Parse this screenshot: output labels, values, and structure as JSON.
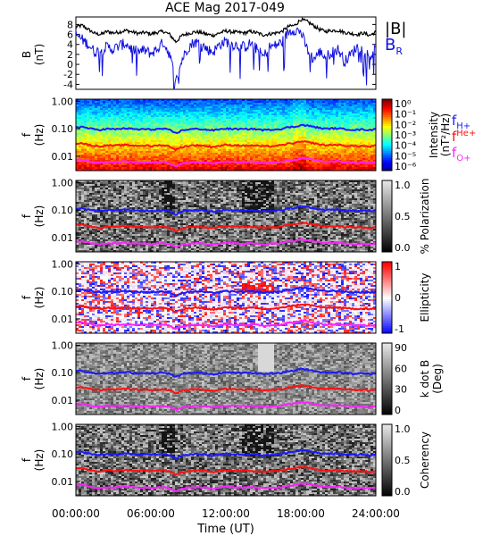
{
  "title": "ACE Mag 2017-049",
  "colors": {
    "b_total": "#000000",
    "b_r": "#1010e0",
    "f_h": "#1a1aff",
    "f_he": "#ff1010",
    "f_o": "#ff22ff"
  },
  "legend": {
    "b_total_label": "|B|",
    "b_r_label": "B",
    "b_r_sub": "R",
    "f_h_label": "f",
    "f_h_sub": "H+",
    "f_he_label": "f",
    "f_he_sub": "He+",
    "f_o_label": "f",
    "f_o_sub": "O+"
  },
  "x_axis": {
    "label": "Time (UT)",
    "ticks": [
      "00:00:00",
      "06:00:00",
      "12:00:00",
      "18:00:00",
      "24:00:00"
    ],
    "range_hours": [
      0,
      24
    ]
  },
  "chart_data": [
    {
      "type": "line",
      "panel": "magnetic-field",
      "ylabel": "B",
      "yunit": "(nT)",
      "ylim": [
        -5,
        9.5
      ],
      "yticks": [
        "-4",
        "-2",
        "0",
        "2",
        "4",
        "6",
        "8"
      ],
      "x_hours": [
        0,
        0.5,
        1,
        1.5,
        2,
        2.5,
        3,
        3.5,
        4,
        4.5,
        5,
        5.5,
        6,
        6.5,
        7,
        7.5,
        8,
        8.5,
        9,
        9.5,
        10,
        10.5,
        11,
        11.5,
        12,
        12.5,
        13,
        13.5,
        14,
        14.5,
        15,
        15.5,
        16,
        16.5,
        17,
        17.5,
        18,
        18.5,
        19,
        19.5,
        20,
        20.5,
        21,
        21.5,
        22,
        22.5,
        23,
        23.5,
        24
      ],
      "series": [
        {
          "name": "|B|",
          "values": [
            7.5,
            7.8,
            7.0,
            6.2,
            6.0,
            6.6,
            6.3,
            6.5,
            6.8,
            6.5,
            6.2,
            6.4,
            6.1,
            6.4,
            6.6,
            6.0,
            4.5,
            5.8,
            6.2,
            6.5,
            6.4,
            6.0,
            5.8,
            6.3,
            6.7,
            6.5,
            6.4,
            6.3,
            6.6,
            6.3,
            5.9,
            6.1,
            6.3,
            6.6,
            7.6,
            7.8,
            9.0,
            8.6,
            7.8,
            7.0,
            6.6,
            6.8,
            6.8,
            6.4,
            6.2,
            6.0,
            6.3,
            5.8,
            6.5
          ]
        },
        {
          "name": "B",
          "values": [
            6.0,
            5.0,
            4.0,
            2.5,
            2.8,
            3.5,
            3.0,
            3.8,
            4.2,
            3.0,
            2.5,
            2.8,
            2.2,
            3.0,
            4.5,
            2.0,
            -3.5,
            1.0,
            3.5,
            4.5,
            4.2,
            3.0,
            2.5,
            4.0,
            4.6,
            4.0,
            3.8,
            3.5,
            4.2,
            3.0,
            1.5,
            3.5,
            3.8,
            4.5,
            6.5,
            7.0,
            6.5,
            3.0,
            1.0,
            2.5,
            1.5,
            2.5,
            3.0,
            0.5,
            2.0,
            3.5,
            3.0,
            1.5,
            3.0
          ]
        }
      ]
    },
    {
      "type": "heatmap",
      "panel": "intensity",
      "ylabel": "f",
      "yunit": "(Hz)",
      "yscale": "log",
      "ylim": [
        0.003,
        1.2
      ],
      "yticks": [
        "0.01",
        "0.10",
        "1.00"
      ],
      "colorbar": {
        "label": "Intensity",
        "unit": "(nT²/Hz)",
        "scale": "log",
        "ticks": [
          "10⁰",
          "10⁻¹",
          "10⁻²",
          "10⁻³",
          "10⁻⁴",
          "10⁻⁵",
          "10⁻⁶"
        ]
      }
    },
    {
      "type": "heatmap",
      "panel": "polarization",
      "ylabel": "f",
      "yunit": "(Hz)",
      "yscale": "log",
      "ylim": [
        0.003,
        1.2
      ],
      "yticks": [
        "0.01",
        "0.10",
        "1.00"
      ],
      "colorbar": {
        "label": "% Polarization",
        "unit": "",
        "scale": "linear",
        "range": [
          0,
          1
        ],
        "ticks": [
          "1.0",
          "0.5",
          "0.0"
        ]
      }
    },
    {
      "type": "heatmap",
      "panel": "ellipticity",
      "ylabel": "f",
      "yunit": "(Hz)",
      "yscale": "log",
      "ylim": [
        0.003,
        1.2
      ],
      "yticks": [
        "0.01",
        "0.10",
        "1.00"
      ],
      "colorbar": {
        "label": "Ellipticity",
        "unit": "",
        "scale": "linear",
        "range": [
          -1,
          1
        ],
        "ticks": [
          "1",
          "0",
          "-1"
        ]
      }
    },
    {
      "type": "heatmap",
      "panel": "wave-normal-angle",
      "ylabel": "f",
      "yunit": "(Hz)",
      "yscale": "log",
      "ylim": [
        0.003,
        1.2
      ],
      "yticks": [
        "0.01",
        "0.10",
        "1.00"
      ],
      "colorbar": {
        "label": "k dot B",
        "unit": "(Deg)",
        "scale": "linear",
        "range": [
          0,
          90
        ],
        "ticks": [
          "90",
          "60",
          "30",
          "0"
        ]
      }
    },
    {
      "type": "heatmap",
      "panel": "coherency",
      "ylabel": "f",
      "yunit": "(Hz)",
      "yscale": "log",
      "ylim": [
        0.003,
        1.2
      ],
      "yticks": [
        "0.01",
        "0.10",
        "1.00"
      ],
      "colorbar": {
        "label": "Coherency",
        "unit": "",
        "scale": "linear",
        "range": [
          0,
          1
        ],
        "ticks": [
          "1.0",
          "0.5",
          "0.0"
        ]
      }
    }
  ],
  "gyrofrequencies": {
    "x_hours": [
      0,
      0.5,
      1,
      1.5,
      2,
      2.5,
      3,
      3.5,
      4,
      4.5,
      5,
      5.5,
      6,
      6.5,
      7,
      7.5,
      8,
      8.5,
      9,
      9.5,
      10,
      10.5,
      11,
      11.5,
      12,
      12.5,
      13,
      13.5,
      14,
      14.5,
      15,
      15.5,
      16,
      16.5,
      17,
      17.5,
      18,
      18.5,
      19,
      19.5,
      20,
      20.5,
      21,
      21.5,
      22,
      22.5,
      23,
      23.5,
      24
    ],
    "f_H_plus": [
      0.115,
      0.118,
      0.105,
      0.095,
      0.092,
      0.1,
      0.096,
      0.099,
      0.104,
      0.099,
      0.094,
      0.098,
      0.093,
      0.098,
      0.1,
      0.09,
      0.068,
      0.088,
      0.095,
      0.099,
      0.098,
      0.092,
      0.088,
      0.096,
      0.102,
      0.099,
      0.098,
      0.096,
      0.1,
      0.096,
      0.09,
      0.093,
      0.096,
      0.1,
      0.115,
      0.118,
      0.137,
      0.131,
      0.119,
      0.107,
      0.1,
      0.103,
      0.103,
      0.097,
      0.094,
      0.091,
      0.096,
      0.088,
      0.099
    ],
    "f_He_plus": [
      0.029,
      0.03,
      0.026,
      0.024,
      0.023,
      0.025,
      0.024,
      0.025,
      0.026,
      0.025,
      0.024,
      0.025,
      0.023,
      0.025,
      0.025,
      0.023,
      0.017,
      0.022,
      0.024,
      0.025,
      0.025,
      0.023,
      0.022,
      0.024,
      0.026,
      0.025,
      0.025,
      0.024,
      0.025,
      0.024,
      0.023,
      0.023,
      0.024,
      0.025,
      0.029,
      0.03,
      0.034,
      0.033,
      0.03,
      0.027,
      0.025,
      0.026,
      0.026,
      0.024,
      0.024,
      0.023,
      0.024,
      0.022,
      0.025
    ],
    "f_O_plus": [
      0.0072,
      0.0074,
      0.0066,
      0.0059,
      0.0058,
      0.0063,
      0.006,
      0.0062,
      0.0065,
      0.0062,
      0.0059,
      0.0061,
      0.0058,
      0.0061,
      0.0063,
      0.0057,
      0.0043,
      0.0055,
      0.0059,
      0.0062,
      0.0061,
      0.0057,
      0.0055,
      0.006,
      0.0064,
      0.0062,
      0.0061,
      0.006,
      0.0063,
      0.006,
      0.0056,
      0.0058,
      0.006,
      0.0063,
      0.0072,
      0.0074,
      0.0086,
      0.0082,
      0.0074,
      0.0067,
      0.0063,
      0.0064,
      0.0065,
      0.0061,
      0.0059,
      0.0057,
      0.006,
      0.0055,
      0.0062
    ]
  }
}
